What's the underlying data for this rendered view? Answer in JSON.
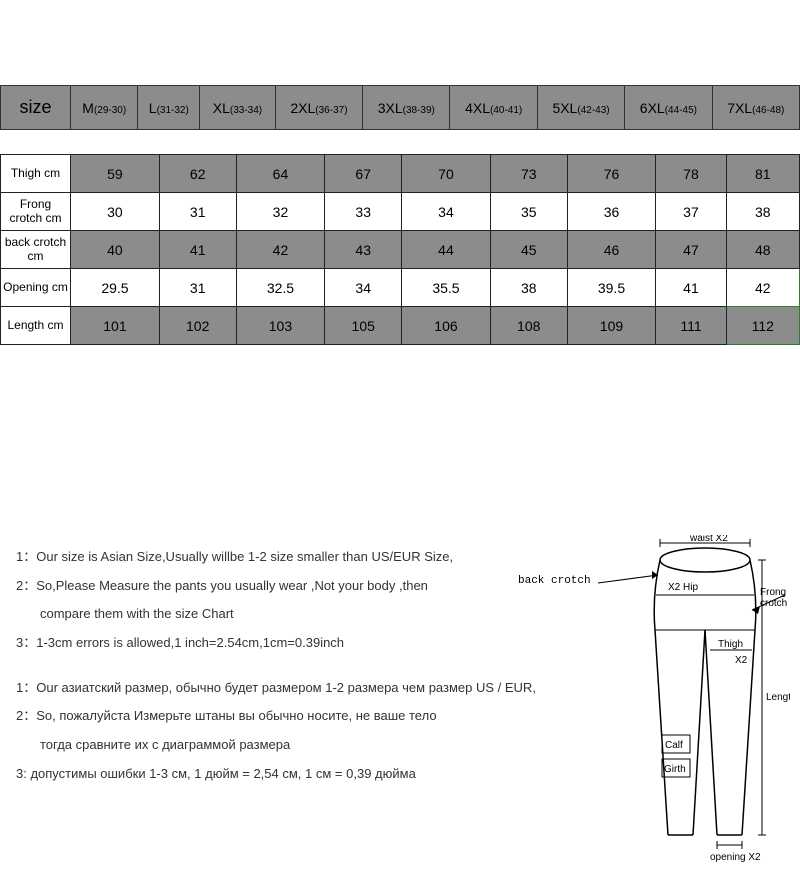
{
  "header_table": {
    "label": "size",
    "columns": [
      {
        "main": "M",
        "sub": "(29-30)"
      },
      {
        "main": "L",
        "sub": "(31-32)"
      },
      {
        "main": "XL",
        "sub": "(33-34)"
      },
      {
        "main": "2XL",
        "sub": "(36-37)"
      },
      {
        "main": "3XL",
        "sub": "(38-39)"
      },
      {
        "main": "4XL",
        "sub": "(40-41)"
      },
      {
        "main": "5XL",
        "sub": "(42-43)"
      },
      {
        "main": "6XL",
        "sub": "(44-45)"
      },
      {
        "main": "7XL",
        "sub": "(46-48)"
      }
    ]
  },
  "data_table": {
    "rows": [
      {
        "label": "Thigh cm",
        "shade": "dark",
        "values": [
          "59",
          "62",
          "64",
          "67",
          "70",
          "73",
          "76",
          "78",
          "81"
        ]
      },
      {
        "label": "Frong crotch cm",
        "shade": "light",
        "values": [
          "30",
          "31",
          "32",
          "33",
          "34",
          "35",
          "36",
          "37",
          "38"
        ]
      },
      {
        "label": "back crotch cm",
        "shade": "dark",
        "values": [
          "40",
          "41",
          "42",
          "43",
          "44",
          "45",
          "46",
          "47",
          "48"
        ]
      },
      {
        "label": "Opening cm",
        "shade": "light",
        "values": [
          "29.5",
          "31",
          "32.5",
          "34",
          "35.5",
          "38",
          "39.5",
          "41",
          "42"
        ]
      },
      {
        "label": "Length cm",
        "shade": "dark",
        "values": [
          "101",
          "102",
          "103",
          "105",
          "106",
          "108",
          "109",
          "111",
          "112"
        ]
      }
    ],
    "highlight_cells": [
      "3-8",
      "4-8"
    ]
  },
  "notes": {
    "en": [
      "1：Our size is Asian Size,Usually willbe 1-2 size smaller than US/EUR Size,",
      "2：So,Please Measure the pants you usually wear ,Not your body ,then",
      "compare them with the size Chart",
      "3：1-3cm errors is allowed,1 inch=2.54cm,1cm=0.39inch"
    ],
    "ru": [
      "1：Our азиатский размер, обычно будет размером 1-2 размера чем размер US / EUR,",
      "2：So, пожалуйста Измерьте штаны вы обычно носите, не ваше тело",
      "тогда сравните их с диаграммой размера",
      "3: допустимы ошибки 1-3 см, 1 дюйм = 2,54 см, 1 см = 0,39 дюйма"
    ]
  },
  "diagram_labels": {
    "waist": "waist X2",
    "back_crotch": "back crotch",
    "hip": "X2 Hip",
    "front_crotch": "Frong crotch",
    "thigh": "Thigh",
    "x2": "X2",
    "length": "Length",
    "calf": "Calf",
    "girth": "Girth",
    "opening": "opening X2"
  },
  "colors": {
    "header_bg": "#8c8c8c",
    "dark_row_bg": "#8c8c8c",
    "light_row_bg": "#ffffff",
    "border": "#333333",
    "highlight_border": "#2e7f2e",
    "background": "#ffffff",
    "text": "#000000"
  }
}
